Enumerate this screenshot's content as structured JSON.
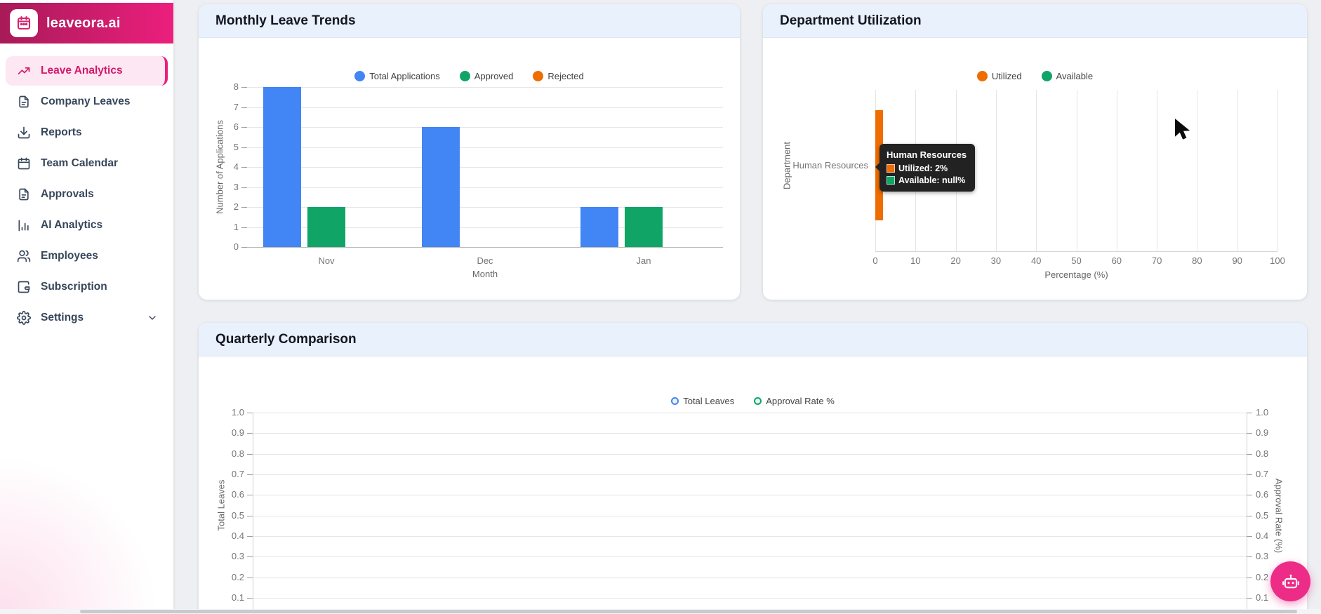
{
  "brand": {
    "name": "leaveora.ai"
  },
  "sidebar": {
    "items": [
      {
        "label": "Leave Analytics",
        "icon": "trending-up-icon",
        "active": true,
        "expandable": false
      },
      {
        "label": "Company Leaves",
        "icon": "document-icon",
        "active": false,
        "expandable": false
      },
      {
        "label": "Reports",
        "icon": "download-icon",
        "active": false,
        "expandable": false
      },
      {
        "label": "Team Calendar",
        "icon": "calendar-icon",
        "active": false,
        "expandable": false
      },
      {
        "label": "Approvals",
        "icon": "document-icon",
        "active": false,
        "expandable": false
      },
      {
        "label": "AI Analytics",
        "icon": "bar-chart-icon",
        "active": false,
        "expandable": false
      },
      {
        "label": "Employees",
        "icon": "users-icon",
        "active": false,
        "expandable": false
      },
      {
        "label": "Subscription",
        "icon": "wallet-icon",
        "active": false,
        "expandable": false
      },
      {
        "label": "Settings",
        "icon": "gear-icon",
        "active": false,
        "expandable": true
      }
    ]
  },
  "colors": {
    "accent": "#ea1e7b",
    "blue": "#4285f4",
    "green": "#10a567",
    "orange": "#ef6c00"
  },
  "chart_data": [
    {
      "id": "monthly",
      "type": "bar",
      "title": "Monthly Leave Trends",
      "categories": [
        "Nov",
        "Dec",
        "Jan"
      ],
      "series": [
        {
          "name": "Total Applications",
          "color": "#4285f4",
          "values": [
            8,
            6,
            2
          ]
        },
        {
          "name": "Approved",
          "color": "#10a567",
          "values": [
            2,
            0,
            2
          ]
        },
        {
          "name": "Rejected",
          "color": "#ef6c00",
          "values": [
            0,
            0,
            0
          ]
        }
      ],
      "xlabel": "Month",
      "ylabel": "Number of Applications",
      "ylim": [
        0,
        8
      ],
      "yticks": [
        8,
        7,
        6,
        5,
        4,
        3,
        2,
        1,
        0
      ],
      "grid": true,
      "legend_position": "top-center",
      "legend_marker": "dot"
    },
    {
      "id": "department",
      "type": "bar-horizontal",
      "title": "Department Utilization",
      "categories": [
        "Human Resources"
      ],
      "series": [
        {
          "name": "Utilized",
          "color": "#ef6c00",
          "values": [
            2
          ]
        },
        {
          "name": "Available",
          "color": "#10a567",
          "values": [
            null
          ]
        }
      ],
      "xlabel": "Percentage (%)",
      "ylabel": "Department",
      "xlim": [
        0,
        100
      ],
      "xticks": [
        0,
        10,
        20,
        30,
        40,
        50,
        60,
        70,
        80,
        90,
        100
      ],
      "grid": true,
      "legend_position": "top-center",
      "legend_marker": "dot",
      "tooltip": {
        "title": "Human Resources",
        "rows": [
          {
            "swatch": "#ef6c00",
            "label": "Utilized: 2%"
          },
          {
            "swatch": "#10a567",
            "label": "Available: null%"
          }
        ]
      }
    },
    {
      "id": "quarterly",
      "type": "line",
      "title": "Quarterly Comparison",
      "categories": [],
      "series": [
        {
          "name": "Total Leaves",
          "color": "#4285f4",
          "values": []
        },
        {
          "name": "Approval Rate %",
          "color": "#10a567",
          "values": []
        }
      ],
      "ylabel_left": "Total Leaves",
      "ylabel_right": "Approval Rate (%)",
      "yticks_left": [
        "1.0",
        "0.9",
        "0.8",
        "0.7",
        "0.6",
        "0.5",
        "0.4",
        "0.3",
        "0.2",
        "0.1"
      ],
      "yticks_right": [
        "1.0",
        "0.9",
        "0.8",
        "0.7",
        "0.6",
        "0.5",
        "0.4",
        "0.3",
        "0.2",
        "0.1"
      ],
      "grid": true,
      "legend_position": "top-center",
      "legend_marker": "ring"
    }
  ]
}
